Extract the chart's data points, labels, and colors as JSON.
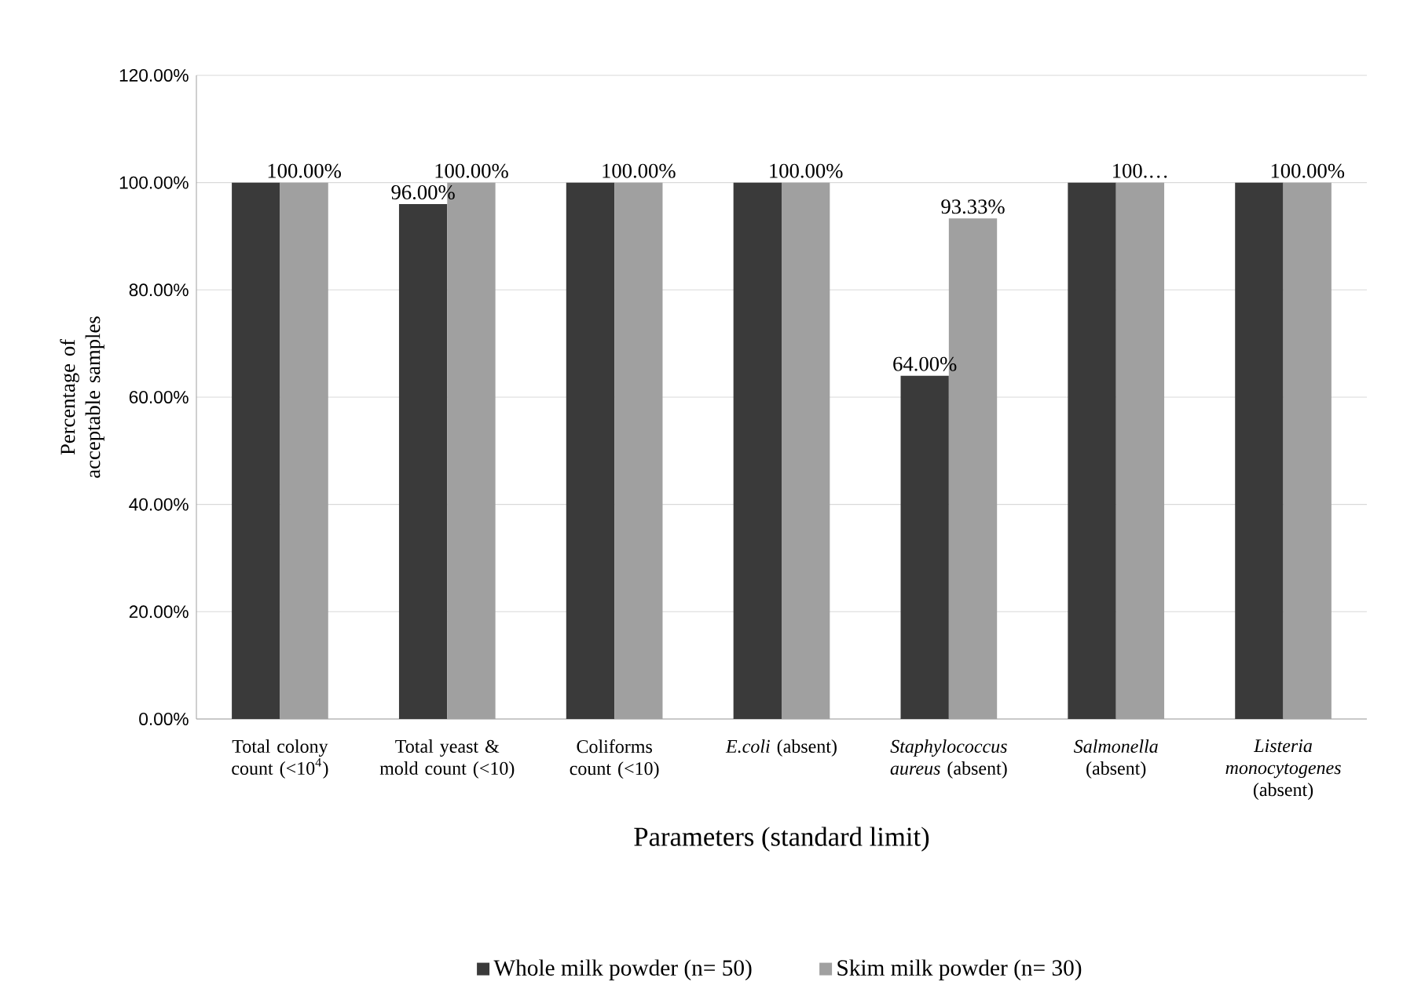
{
  "chart_data": {
    "type": "bar",
    "categories": [
      "Total colony count (<10$^{4}$)",
      "Total yeast & mold count (<10)",
      "Coliforms count (<10)",
      "*E.coli* (absent)",
      "*Staphylococcus aureus* (absent)",
      "*Salmonella* (absent)",
      "*Listeria monocytogenes* (absent)"
    ],
    "series": [
      {
        "name": "Whole milk powder (n= 50)",
        "color": "#3a3a3a",
        "values": [
          100,
          96,
          100,
          100,
          64,
          100,
          100
        ],
        "value_labels": [
          null,
          "96.00%",
          null,
          null,
          "64.00%",
          null,
          null
        ]
      },
      {
        "name": "Skim milk powder (n= 30)",
        "color": "#a0a0a0",
        "values": [
          100,
          100,
          100,
          100,
          93.33,
          100,
          100
        ],
        "value_labels": [
          "100.00%",
          "100.00%",
          "100.00%",
          "100.00%",
          "93.33%",
          "100.…",
          "100.00%"
        ]
      }
    ],
    "xlabel": "Parameters (standard limit)",
    "ylabel": "Percentage of acceptable samples",
    "ylim": [
      0,
      120
    ],
    "yticks": [
      {
        "value": 0,
        "label": "0.00%"
      },
      {
        "value": 20,
        "label": "20.00%"
      },
      {
        "value": 40,
        "label": "40.00%"
      },
      {
        "value": 60,
        "label": "60.00%"
      },
      {
        "value": 80,
        "label": "80.00%"
      },
      {
        "value": 100,
        "label": "100.00%"
      },
      {
        "value": 120,
        "label": "120.00%"
      }
    ],
    "grid": "y",
    "legend": "bottom"
  }
}
